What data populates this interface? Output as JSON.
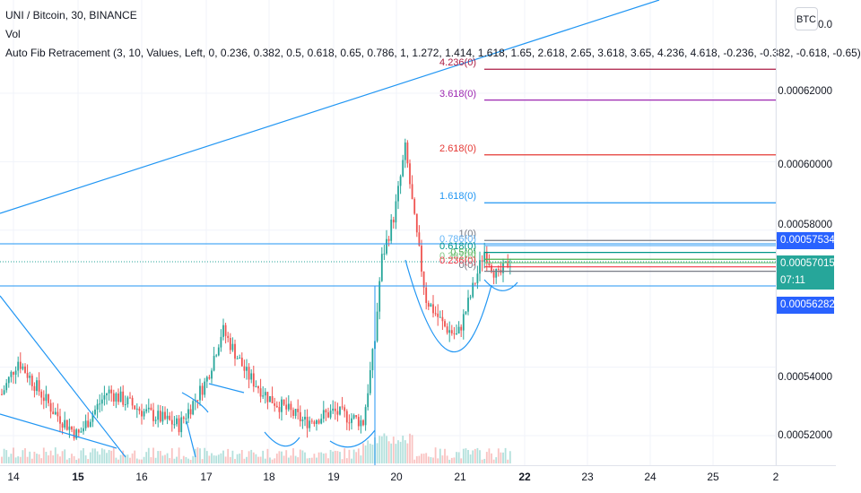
{
  "header": {
    "symbol_line": "UNI / Bitcoin, 30, BINANCE",
    "vol_label": "Vol",
    "fib_line": "Auto Fib Retracement (3, 10, Values, Left, 0, 0.236, 0.382, 0.5, 0.618, 0.65, 0.786, 1, 1.272, 1.414, 1.618, 1.65, 2.618, 2.65, 3.618, 3.65, 4.236, 4.618, -0.236, -0.382, -0.618, -0.65)"
  },
  "currency_button": "BTC",
  "price_axis": {
    "labels": [
      "0.00062000",
      "0.00060000",
      "0.00058000",
      "0.00054000",
      "0.00052000"
    ],
    "values": [
      0.00062,
      0.0006,
      0.00058,
      0.00054,
      0.00052
    ],
    "top_label": "0.0"
  },
  "price_tags": {
    "upper": "0.00057534",
    "current": "0.00057015",
    "countdown": "07:11",
    "lower": "0.00056282"
  },
  "time_axis": {
    "labels": [
      "14",
      "15",
      "16",
      "17",
      "18",
      "19",
      "20",
      "21",
      "22",
      "23",
      "24",
      "25",
      "2"
    ],
    "bold": [
      "15",
      "22"
    ]
  },
  "fib_levels": [
    {
      "label": "4.236(0)",
      "color": "#ab1d44"
    },
    {
      "label": "3.618(0)",
      "color": "#9c27b0"
    },
    {
      "label": "2.618(0)",
      "color": "#e53935"
    },
    {
      "label": "1.618(0)",
      "color": "#2196f3"
    },
    {
      "label": "1(0)",
      "color": "#787b86"
    },
    {
      "label": "0.786(0)",
      "color": "#64b5f6"
    },
    {
      "label": "0.618(0)",
      "color": "#009688"
    },
    {
      "label": "0.5(0)",
      "color": "#4caf50"
    },
    {
      "label": "0.382(0)",
      "color": "#81c784"
    },
    {
      "label": "0.236(0)",
      "color": "#f23645"
    },
    {
      "label": "0(0)",
      "color": "#787b86"
    }
  ],
  "colors": {
    "up": "#26a69a",
    "down": "#ef5350",
    "trendline": "#2196f3",
    "tag_blue": "#2962ff",
    "tag_teal": "#26a69a"
  },
  "chart_data": {
    "type": "candlestick",
    "title": "UNI / Bitcoin, 30, BINANCE",
    "x_ticks": [
      "14",
      "15",
      "16",
      "17",
      "18",
      "19",
      "20",
      "21",
      "22",
      "23",
      "24",
      "25",
      "2"
    ],
    "y_ticks": [
      0.00062,
      0.0006,
      0.00058,
      0.00054,
      0.00052
    ],
    "ylim": [
      0.000512,
      0.000648
    ],
    "fib_values": [
      {
        "label": "4.236(0)",
        "price": 0.000627
      },
      {
        "label": "3.618(0)",
        "price": 0.000618
      },
      {
        "label": "2.618(0)",
        "price": 0.000602
      },
      {
        "label": "1.618(0)",
        "price": 0.000588
      },
      {
        "label": "1(0)",
        "price": 0.000577
      },
      {
        "label": "0.786(0)",
        "price": 0.0005755
      },
      {
        "label": "0.618(0)",
        "price": 0.0005735
      },
      {
        "label": "0.5(0)",
        "price": 0.0005715
      },
      {
        "label": "0.382(0)",
        "price": 0.0005705
      },
      {
        "label": "0.236(0)",
        "price": 0.0005693
      },
      {
        "label": "0(0)",
        "price": 0.000568
      }
    ],
    "last_price": 0.00057015,
    "highlight_prices": [
      0.00057534,
      0.00056282
    ]
  }
}
